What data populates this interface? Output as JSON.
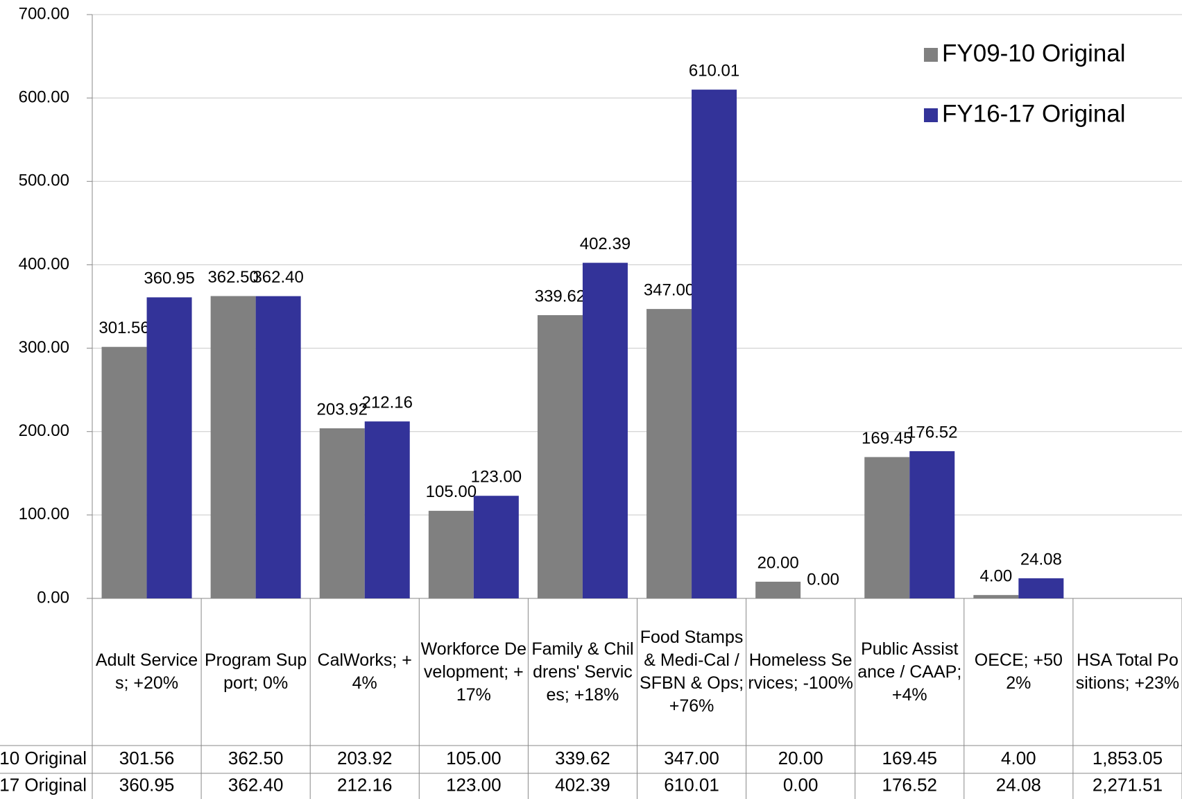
{
  "chart_data": {
    "type": "bar",
    "categories": [
      "Adult Services; +20%",
      "Program Support; 0%",
      "CalWorks; +4%",
      "Workforce Development; +17%",
      "Family & Childrens' Services; +18%",
      "Food Stamps & Medi-Cal / SFBN & Ops; +76%",
      "Homeless Services; -100%",
      "Public Assistance / CAAP; +4%",
      "OECE; +502%",
      "HSA Total Positions; +23%"
    ],
    "series": [
      {
        "name": "FY09-10 Original",
        "color": "#808080",
        "values": [
          301.56,
          362.5,
          203.92,
          105,
          339.62,
          347,
          20,
          169.45,
          4,
          1853.05
        ],
        "value_labels": [
          "301.56",
          "362.50",
          "203.92",
          "105.00",
          "339.62",
          "347.00",
          "20.00",
          "169.45",
          "4.00",
          "1,853.05"
        ]
      },
      {
        "name": "FY16-17 Original",
        "color": "#333399",
        "values": [
          360.95,
          362.4,
          212.16,
          123,
          402.39,
          610.01,
          0,
          176.52,
          24.08,
          2271.51
        ],
        "value_labels": [
          "360.95",
          "362.40",
          "212.16",
          "123.00",
          "402.39",
          "610.01",
          "0.00",
          "176.52",
          "24.08",
          "2,271.51"
        ]
      }
    ],
    "ylim": [
      0,
      700
    ],
    "yticks": [
      {
        "value": 0,
        "label": "0.00"
      },
      {
        "value": 100,
        "label": "100.00"
      },
      {
        "value": 200,
        "label": "200.00"
      },
      {
        "value": 300,
        "label": "300.00"
      },
      {
        "value": 400,
        "label": "400.00"
      },
      {
        "value": 500,
        "label": "500.00"
      },
      {
        "value": 600,
        "label": "600.00"
      },
      {
        "value": 700,
        "label": "700.00"
      }
    ],
    "grid": true,
    "legend": "upper right",
    "data_table": true
  }
}
